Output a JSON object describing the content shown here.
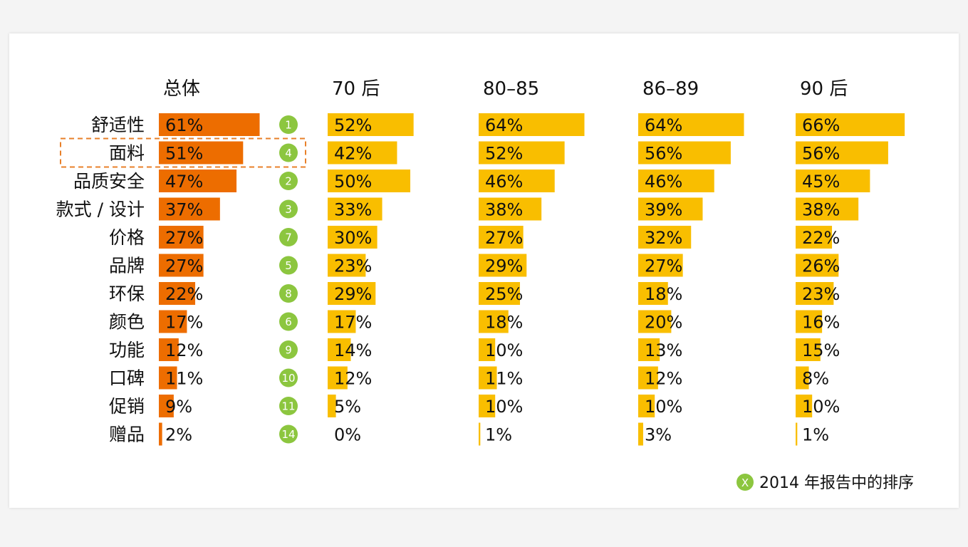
{
  "chart_data": {
    "type": "bar",
    "orientation": "horizontal",
    "categories": [
      "舒适性",
      "面料",
      "品质安全",
      "款式 / 设计",
      "价格",
      "品牌",
      "环保",
      "颜色",
      "功能",
      "口碑",
      "促销",
      "赠品"
    ],
    "series": [
      {
        "name": "总体",
        "values": [
          61,
          51,
          47,
          37,
          27,
          27,
          22,
          17,
          12,
          11,
          9,
          2
        ]
      },
      {
        "name": "70 后",
        "values": [
          52,
          42,
          50,
          33,
          30,
          23,
          29,
          17,
          14,
          12,
          5,
          0
        ]
      },
      {
        "name": "80–85",
        "values": [
          64,
          52,
          46,
          38,
          27,
          29,
          25,
          18,
          10,
          11,
          10,
          1
        ]
      },
      {
        "name": "86–89",
        "values": [
          64,
          56,
          46,
          39,
          32,
          27,
          18,
          20,
          13,
          12,
          10,
          3
        ]
      },
      {
        "name": "90 后",
        "values": [
          66,
          56,
          45,
          38,
          22,
          26,
          23,
          16,
          15,
          8,
          10,
          1
        ]
      }
    ],
    "ranks_2014": [
      "1",
      "4",
      "2",
      "3",
      "7",
      "5",
      "8",
      "6",
      "9",
      "10",
      "11",
      "14"
    ],
    "highlighted_category": "面料",
    "legend": {
      "symbol": "X",
      "label": "2014 年报告中的排序",
      "placement": "bottom-right"
    },
    "colors": {
      "overall": "#ed6d00",
      "groups": "#f9be00",
      "rank_badge": "#8cc63f",
      "highlight_border": "#e8802a"
    }
  }
}
